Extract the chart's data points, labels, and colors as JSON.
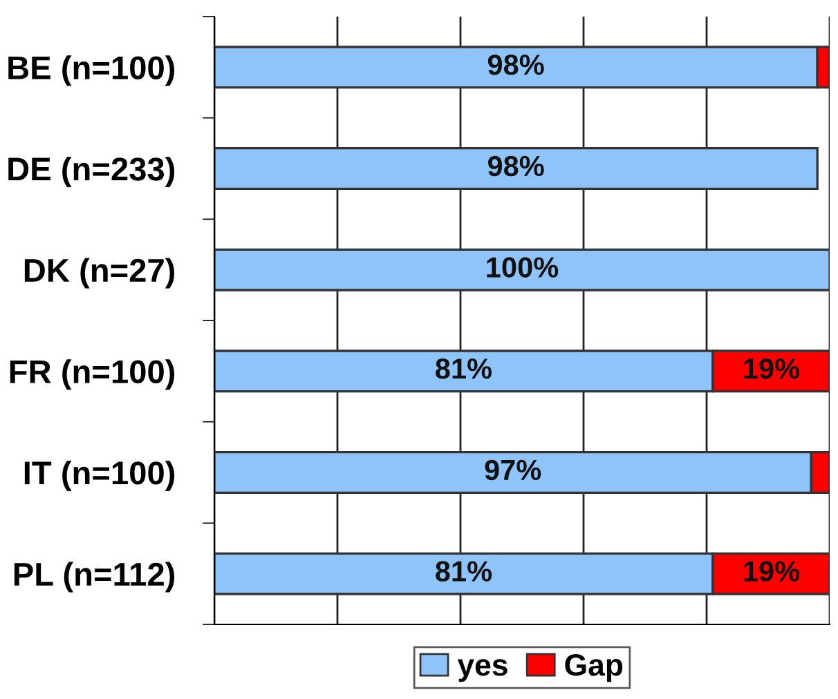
{
  "chart_data": {
    "type": "bar",
    "orientation": "horizontal",
    "stacked": true,
    "categories": [
      "BE (n=100)",
      "DE (n=233)",
      "DK (n=27)",
      "FR (n=100)",
      "IT (n=100)",
      "PL (n=112)"
    ],
    "series": [
      {
        "name": "yes",
        "color": "#8ec4fa",
        "values": [
          98,
          98,
          100,
          81,
          97,
          81
        ],
        "value_labels": [
          "98%",
          "98%",
          "100%",
          "81%",
          "97%",
          "81%"
        ]
      },
      {
        "name": "Gap",
        "color": "#ff0000",
        "values": [
          2,
          null,
          null,
          19,
          3,
          19
        ],
        "value_labels": [
          null,
          null,
          null,
          "19%",
          null,
          "19%"
        ]
      }
    ],
    "xlim": [
      0,
      100
    ],
    "xticks": [
      {
        "value": 0,
        "label": null
      },
      {
        "value": 20,
        "label": null
      },
      {
        "value": 40,
        "label": null
      },
      {
        "value": 60,
        "label": null
      },
      {
        "value": 80,
        "label": null
      },
      {
        "value": 100,
        "label": null
      }
    ],
    "grid": "x",
    "legend": "bottom",
    "tick_labels": "y"
  }
}
